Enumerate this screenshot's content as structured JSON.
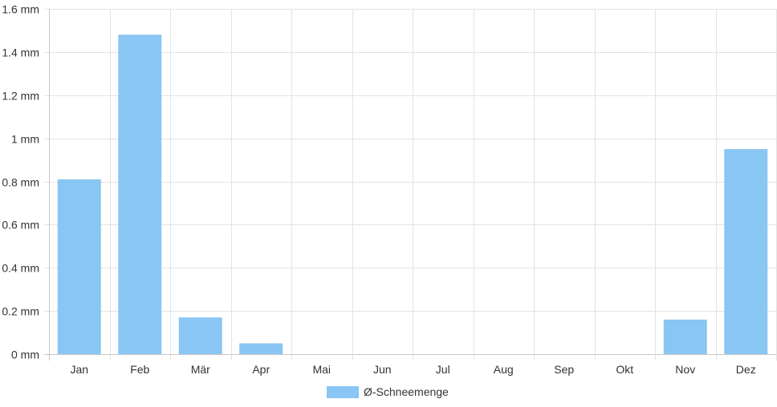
{
  "chart_data": {
    "type": "bar",
    "categories": [
      "Jan",
      "Feb",
      "Mär",
      "Apr",
      "Mai",
      "Jun",
      "Jul",
      "Aug",
      "Sep",
      "Okt",
      "Nov",
      "Dez"
    ],
    "series": [
      {
        "name": "Ø-Schneemenge",
        "values": [
          0.81,
          1.48,
          0.17,
          0.05,
          0,
          0,
          0,
          0,
          0,
          0,
          0.16,
          0.95
        ],
        "color": "#89c6f3"
      }
    ],
    "y_unit": "mm",
    "ylim": [
      0,
      1.6
    ],
    "yticks": [
      0,
      0.2,
      0.4,
      0.6,
      0.8,
      1,
      1.2,
      1.4,
      1.6
    ],
    "ytick_labels": [
      "0 mm",
      "0.2 mm",
      "0.4 mm",
      "0.6 mm",
      "0.8 mm",
      "1 mm",
      "1.2 mm",
      "1.4 mm",
      "1.6 mm"
    ],
    "grid": true,
    "legend_position": "bottom",
    "colors": {
      "grid": "#e3e3e3",
      "axis": "#c8c8c8",
      "text": "#333333"
    }
  }
}
